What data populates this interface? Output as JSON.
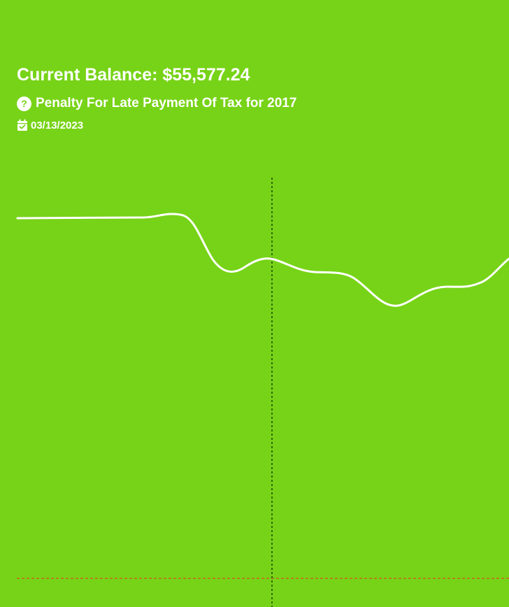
{
  "header": {
    "balance_text": "Current Balance: $55,577.24",
    "description": "Penalty For Late Payment Of Tax for 2017",
    "date": "03/13/2023",
    "icons": {
      "description_icon": "question-circle-icon",
      "date_icon": "calendar-check-icon"
    }
  },
  "colors": {
    "background": "#77d317",
    "line": "#ffffff",
    "cursor_line": "#2d6b06",
    "baseline": "#d9531e"
  }
}
